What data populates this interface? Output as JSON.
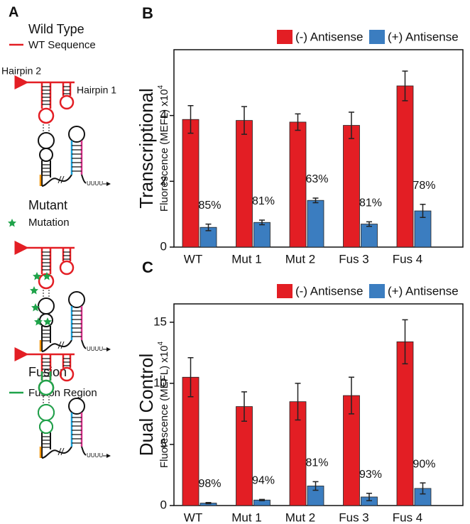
{
  "diagram": {
    "panel": "A",
    "terminator": "UUUU",
    "sections": [
      {
        "title": "Wild Type",
        "key": "WT Sequence",
        "labels": [
          "Hairpin 2",
          "Hairpin 1"
        ]
      },
      {
        "title": "Mutant",
        "key": "Mutation"
      },
      {
        "title": "Fusion",
        "key": "Fusion Region"
      }
    ]
  },
  "chart_data": [
    {
      "type": "bar",
      "panel": "B",
      "row_label": "Transcriptional",
      "ylabel": "Fluorescence (MEFL) x10",
      "ylabel_exponent": "4",
      "categories": [
        "WT",
        "Mut 1",
        "Mut 2",
        "Fus 3",
        "Fus 4"
      ],
      "series": [
        {
          "name": "(-) Antisense",
          "color": "#e31e24",
          "values": [
            3.88,
            3.85,
            3.8,
            3.7,
            4.9
          ],
          "errors": [
            0.42,
            0.42,
            0.25,
            0.4,
            0.45
          ]
        },
        {
          "name": "(+) Antisense",
          "color": "#3b7dc0",
          "values": [
            0.6,
            0.75,
            1.42,
            0.7,
            1.1
          ],
          "errors": [
            0.1,
            0.07,
            0.07,
            0.07,
            0.2
          ]
        }
      ],
      "annotations": [
        "85%",
        "81%",
        "63%",
        "81%",
        "78%"
      ],
      "ylim": [
        0,
        6
      ],
      "yticks": [
        0,
        2,
        4
      ],
      "legend": "top-right"
    },
    {
      "type": "bar",
      "panel": "C",
      "row_label": "Dual Control",
      "ylabel": "Fluorescence (MEFL) x10",
      "ylabel_exponent": "4",
      "categories": [
        "WT",
        "Mut 1",
        "Mut 2",
        "Fus 3",
        "Fus 4"
      ],
      "series": [
        {
          "name": "(-) Antisense",
          "color": "#e31e24",
          "values": [
            10.5,
            8.1,
            8.5,
            9.0,
            13.4
          ],
          "errors": [
            1.6,
            1.2,
            1.5,
            1.5,
            1.8
          ]
        },
        {
          "name": "(+) Antisense",
          "color": "#3b7dc0",
          "values": [
            0.2,
            0.45,
            1.6,
            0.7,
            1.4
          ],
          "errors": [
            0.05,
            0.05,
            0.35,
            0.3,
            0.45
          ]
        }
      ],
      "annotations": [
        "98%",
        "94%",
        "81%",
        "93%",
        "90%"
      ],
      "ylim": [
        0,
        16.5
      ],
      "yticks": [
        0,
        5,
        10,
        15
      ],
      "legend": "top-right"
    }
  ]
}
